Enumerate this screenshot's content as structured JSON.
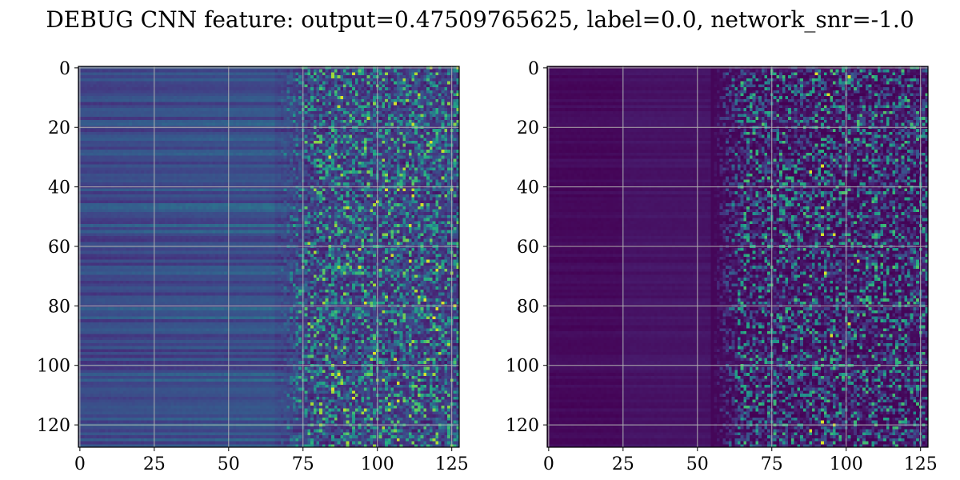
{
  "chart_data": {
    "title": "DEBUG CNN feature: output=0.47509765625, label=0.0, network_snr=-1.0",
    "type": "heatmap",
    "grid": true,
    "colormap": "viridis",
    "panels": [
      {
        "name": "",
        "rows": 128,
        "cols": 128,
        "xlim": [
          -0.5,
          127.5
        ],
        "ylim": [
          127.5,
          -0.5
        ],
        "xticks": [
          0,
          25,
          50,
          75,
          100,
          125
        ],
        "yticks": [
          0,
          20,
          40,
          60,
          80,
          100,
          120
        ],
        "description": "smooth horizontal banding for cols 0-70, noisy speckle for cols 75-127 with bright hot spots",
        "base_level": 0.28,
        "noise_start_col": 66,
        "hot_spots": [
          [
            2,
            92
          ],
          [
            10,
            88
          ],
          [
            12,
            106
          ],
          [
            25,
            118
          ],
          [
            30,
            84
          ],
          [
            41,
            103
          ],
          [
            43,
            112
          ],
          [
            45,
            100
          ],
          [
            63,
            105
          ],
          [
            65,
            111
          ],
          [
            65,
            117
          ],
          [
            67,
            94
          ],
          [
            79,
            96
          ],
          [
            79,
            122
          ],
          [
            81,
            120
          ],
          [
            96,
            99
          ],
          [
            98,
            106
          ],
          [
            103,
            87
          ],
          [
            103,
            116
          ],
          [
            106,
            107
          ],
          [
            111,
            92
          ]
        ]
      },
      {
        "name": "",
        "rows": 128,
        "cols": 128,
        "xlim": [
          -0.5,
          127.5
        ],
        "ylim": [
          127.5,
          -0.5
        ],
        "xticks": [
          0,
          25,
          50,
          75,
          100,
          125
        ],
        "yticks": [
          0,
          20,
          40,
          60,
          80,
          100,
          120
        ],
        "description": "dark purple background for cols 0-55, sparse noisy features for cols 55-127",
        "base_level": 0.02,
        "noise_start_col": 55,
        "hot_spots": [
          [
            2,
            90
          ],
          [
            3,
            101
          ],
          [
            9,
            94
          ],
          [
            33,
            92
          ],
          [
            35,
            88
          ],
          [
            47,
            92
          ],
          [
            56,
            92
          ],
          [
            56,
            96
          ],
          [
            65,
            104
          ],
          [
            69,
            93
          ],
          [
            86,
            101
          ],
          [
            90,
            95
          ],
          [
            119,
            92
          ],
          [
            120,
            96
          ],
          [
            122,
            88
          ],
          [
            126,
            92
          ]
        ]
      }
    ]
  }
}
